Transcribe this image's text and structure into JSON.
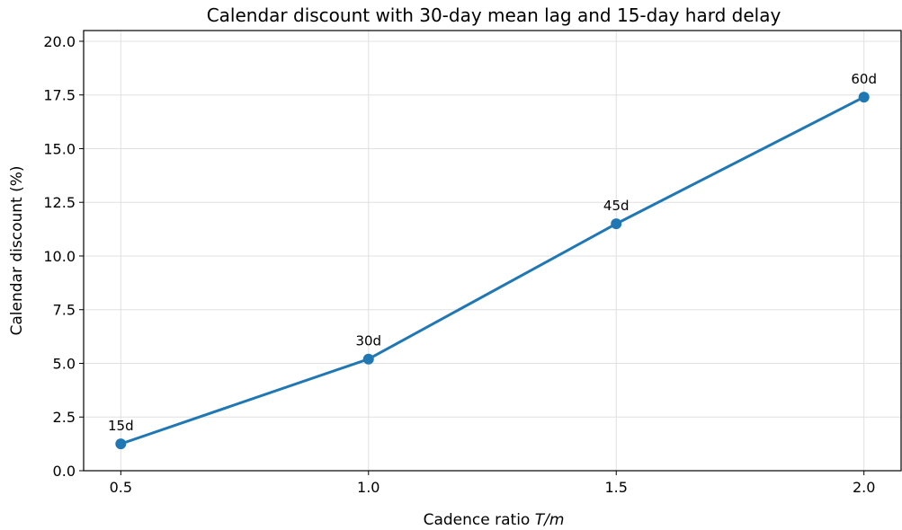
{
  "chart_data": {
    "type": "line",
    "title": "Calendar discount with 30-day mean lag and 15-day hard delay",
    "xlabel_prefix": "Cadence ratio ",
    "xlabel_var": "T/m",
    "ylabel": "Calendar discount (%)",
    "x": [
      0.5,
      1.0,
      1.5,
      2.0
    ],
    "series": [
      {
        "values": [
          1.25,
          5.2,
          11.5,
          17.4
        ],
        "point_labels": [
          "15d",
          "30d",
          "45d",
          "60d"
        ],
        "color": "#1f77b4"
      }
    ],
    "xlim": [
      0.425,
      2.075
    ],
    "ylim": [
      0,
      20.5
    ],
    "xticks": [
      0.5,
      1.0,
      1.5,
      2.0
    ],
    "xtick_labels": [
      "0.5",
      "1.0",
      "1.5",
      "2.0"
    ],
    "yticks": [
      0,
      2.5,
      5,
      7.5,
      10,
      12.5,
      15,
      17.5,
      20
    ],
    "ytick_labels": [
      "0.0",
      "2.5",
      "5.0",
      "7.5",
      "10.0",
      "12.5",
      "15.0",
      "17.5",
      "20.0"
    ],
    "grid": true,
    "grid_color": "#e0e0e0"
  }
}
